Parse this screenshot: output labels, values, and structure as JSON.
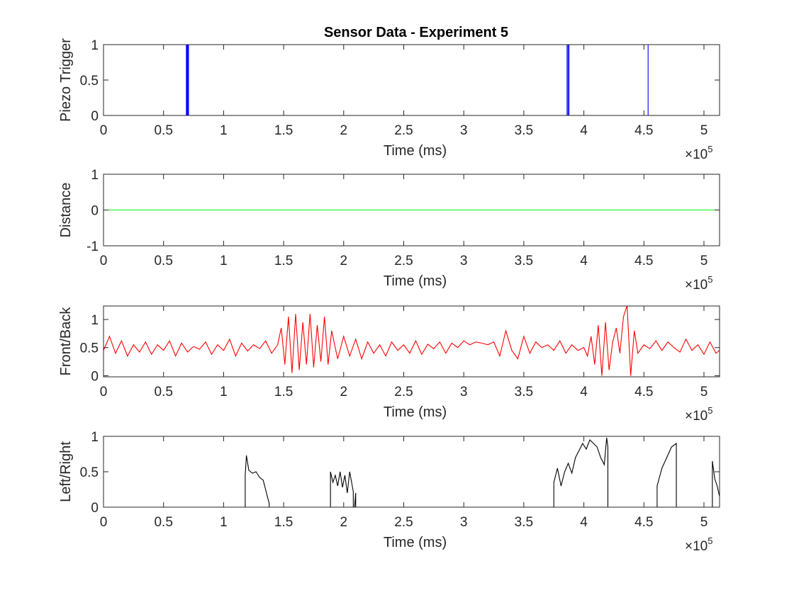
{
  "figure": {
    "title": "Sensor Data - Experiment 5"
  },
  "chart_data": [
    {
      "type": "line",
      "title": "Sensor Data - Experiment 5",
      "xlabel": "Time (ms)",
      "ylabel": "Piezo Trigger",
      "xlim": [
        0,
        513000
      ],
      "ylim": [
        0,
        1
      ],
      "x_ticks": [
        "0",
        "0.5",
        "1",
        "1.5",
        "2",
        "2.5",
        "3",
        "3.5",
        "4",
        "4.5",
        "5"
      ],
      "y_ticks": [
        "0",
        "0.5",
        "1"
      ],
      "x_exponent": {
        "base": "×10",
        "power": "5"
      },
      "color": "#0000ff",
      "series": [
        {
          "x": [
            0,
            69000,
            69000,
            69200,
            69200,
            69400,
            69400,
            69600,
            69600,
            69800,
            69800,
            70000,
            70000,
            70200,
            70200,
            70400,
            70400,
            70600,
            70600,
            70800,
            70800,
            71000,
            71000,
            386000,
            386000,
            386800,
            386800,
            387600,
            387600,
            453500,
            453500,
            513000
          ],
          "y": [
            0,
            0,
            1,
            1,
            0,
            0,
            1,
            1,
            0,
            0,
            1,
            1,
            0,
            0,
            1,
            1,
            0,
            0,
            1,
            1,
            0,
            0,
            0,
            0,
            1,
            1,
            0,
            0,
            1,
            1,
            0,
            0
          ]
        }
      ]
    },
    {
      "type": "line",
      "xlabel": "Time (ms)",
      "ylabel": "Distance",
      "xlim": [
        0,
        513000
      ],
      "ylim": [
        -1,
        1
      ],
      "x_ticks": [
        "0",
        "0.5",
        "1",
        "1.5",
        "2",
        "2.5",
        "3",
        "3.5",
        "4",
        "4.5",
        "5"
      ],
      "y_ticks": [
        "-1",
        "0",
        "1"
      ],
      "x_exponent": {
        "base": "×10",
        "power": "5"
      },
      "color": "#00ff00",
      "series": [
        {
          "x": [
            0,
            513000
          ],
          "y": [
            0,
            0
          ]
        }
      ]
    },
    {
      "type": "line",
      "xlabel": "Time (ms)",
      "ylabel": "Front/Back",
      "xlim": [
        0,
        513000
      ],
      "ylim": [
        -0.02,
        1.24
      ],
      "x_ticks": [
        "0",
        "0.5",
        "1",
        "1.5",
        "2",
        "2.5",
        "3",
        "3.5",
        "4",
        "4.5",
        "5"
      ],
      "y_ticks": [
        "0",
        "0.5",
        "1"
      ],
      "x_exponent": {
        "base": "×10",
        "power": "5"
      },
      "color": "#ff0000",
      "series": [
        {
          "x": [
            0,
            5000,
            10000,
            15000,
            20000,
            25000,
            30000,
            35000,
            40000,
            45000,
            50000,
            55000,
            60000,
            65000,
            70000,
            75000,
            80000,
            85000,
            90000,
            95000,
            100000,
            105000,
            110000,
            115000,
            120000,
            125000,
            130000,
            135000,
            140000,
            145000,
            148000,
            151000,
            154000,
            157000,
            160000,
            163000,
            166000,
            169000,
            172000,
            175000,
            178000,
            181000,
            184000,
            187000,
            190000,
            195000,
            200000,
            205000,
            210000,
            215000,
            220000,
            225000,
            230000,
            235000,
            240000,
            245000,
            250000,
            255000,
            260000,
            265000,
            270000,
            275000,
            280000,
            285000,
            290000,
            295000,
            300000,
            305000,
            310000,
            315000,
            320000,
            325000,
            330000,
            335000,
            340000,
            345000,
            350000,
            355000,
            360000,
            365000,
            370000,
            375000,
            380000,
            385000,
            390000,
            395000,
            400000,
            403000,
            406000,
            409000,
            412000,
            415000,
            418000,
            421000,
            424000,
            427000,
            430000,
            433000,
            436000,
            439000,
            442000,
            445000,
            450000,
            455000,
            460000,
            465000,
            470000,
            475000,
            480000,
            485000,
            490000,
            495000,
            500000,
            505000,
            510000,
            513000
          ],
          "y": [
            0.45,
            0.7,
            0.4,
            0.62,
            0.35,
            0.55,
            0.42,
            0.6,
            0.38,
            0.55,
            0.45,
            0.62,
            0.35,
            0.58,
            0.42,
            0.52,
            0.47,
            0.6,
            0.38,
            0.55,
            0.45,
            0.65,
            0.35,
            0.58,
            0.44,
            0.55,
            0.48,
            0.62,
            0.4,
            0.55,
            0.85,
            0.2,
            1.05,
            0.05,
            1.1,
            0.1,
            0.95,
            0.2,
            1.1,
            0.15,
            0.9,
            0.25,
            1.05,
            0.2,
            0.8,
            0.3,
            0.7,
            0.35,
            0.65,
            0.3,
            0.6,
            0.4,
            0.55,
            0.35,
            0.6,
            0.45,
            0.55,
            0.4,
            0.62,
            0.38,
            0.56,
            0.48,
            0.6,
            0.4,
            0.58,
            0.5,
            0.62,
            0.55,
            0.6,
            0.58,
            0.55,
            0.6,
            0.35,
            0.8,
            0.45,
            0.3,
            0.7,
            0.4,
            0.6,
            0.5,
            0.55,
            0.45,
            0.62,
            0.4,
            0.55,
            0.45,
            0.5,
            0.35,
            0.7,
            0.2,
            0.9,
            0.0,
            0.95,
            0.1,
            0.6,
            0.85,
            0.4,
            1.05,
            1.25,
            0.0,
            0.8,
            0.4,
            0.55,
            0.48,
            0.62,
            0.45,
            0.6,
            0.5,
            0.42,
            0.65,
            0.45,
            0.55,
            0.38,
            0.6,
            0.4,
            0.45
          ]
        }
      ]
    },
    {
      "type": "line",
      "xlabel": "Time (ms)",
      "ylabel": "Left/Right",
      "xlim": [
        0,
        513000
      ],
      "ylim": [
        0,
        1
      ],
      "x_ticks": [
        "0",
        "0.5",
        "1",
        "1.5",
        "2",
        "2.5",
        "3",
        "3.5",
        "4",
        "4.5",
        "5"
      ],
      "y_ticks": [
        "0",
        "0.5",
        "1"
      ],
      "x_exponent": {
        "base": "×10",
        "power": "5"
      },
      "color": "#000000",
      "series": [
        {
          "x": [
            0,
            118000,
            118000,
            119000,
            121000,
            124000,
            127000,
            130000,
            133000,
            136000,
            138000,
            138000,
            189000,
            189000,
            191000,
            193000,
            195000,
            197000,
            199000,
            201000,
            203000,
            205000,
            208000,
            208000,
            209000,
            210000,
            210000,
            375000,
            375000,
            378000,
            381000,
            384000,
            387000,
            390000,
            393000,
            396000,
            399000,
            402000,
            405000,
            408000,
            411000,
            414000,
            417000,
            419000,
            420000,
            420000,
            421000,
            421000,
            461000,
            461000,
            465000,
            469000,
            473000,
            477000,
            477000,
            507000,
            507000,
            509000,
            511000,
            513000
          ],
          "y": [
            0,
            0,
            0.45,
            0.73,
            0.52,
            0.48,
            0.5,
            0.42,
            0.38,
            0.18,
            0.05,
            0,
            0,
            0.5,
            0.35,
            0.45,
            0.3,
            0.5,
            0.28,
            0.45,
            0.2,
            0.5,
            0.22,
            0,
            0,
            0.2,
            0,
            0,
            0.35,
            0.55,
            0.3,
            0.5,
            0.62,
            0.48,
            0.7,
            0.8,
            0.9,
            0.82,
            0.95,
            0.9,
            0.85,
            0.7,
            0.6,
            0.98,
            0.85,
            0,
            0,
            0,
            0,
            0.3,
            0.55,
            0.7,
            0.85,
            0.9,
            0,
            0,
            0.65,
            0.4,
            0.3,
            0.15
          ]
        }
      ]
    }
  ]
}
